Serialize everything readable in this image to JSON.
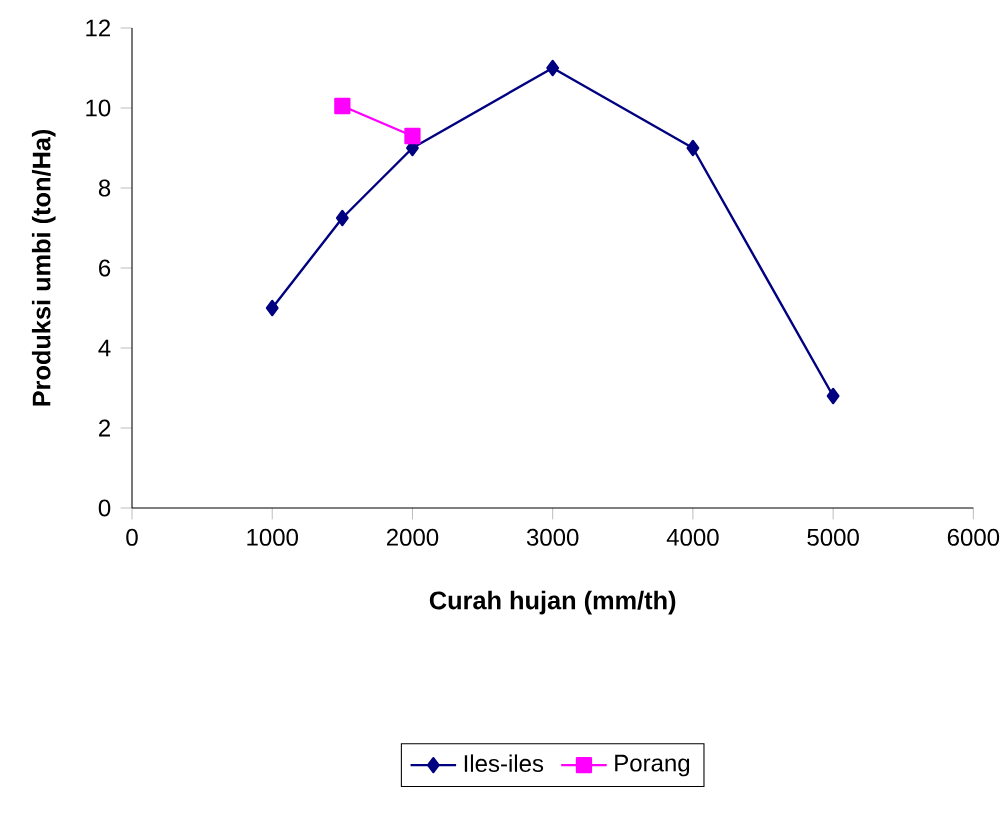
{
  "chart_data": {
    "type": "line",
    "xlabel": "Curah hujan (mm/th)",
    "ylabel": "Produksi umbi (ton/Ha)",
    "series": [
      {
        "name": "Iles-iles",
        "color": "#000080",
        "marker": "diamond",
        "x": [
          1000,
          1500,
          2000,
          3000,
          4000,
          5000
        ],
        "values": [
          5.0,
          7.25,
          9.0,
          11.0,
          9.0,
          2.8
        ]
      },
      {
        "name": "Porang",
        "color": "#ff00ff",
        "marker": "square",
        "x": [
          1500,
          2000
        ],
        "values": [
          10.05,
          9.3
        ]
      }
    ],
    "xlim": [
      0,
      6000
    ],
    "xticks": [
      0,
      1000,
      2000,
      3000,
      4000,
      5000,
      6000
    ],
    "ylim": [
      0,
      12
    ],
    "yticks": [
      0,
      2,
      4,
      6,
      8,
      10,
      12
    ],
    "grid": false,
    "legend": "bottom"
  }
}
